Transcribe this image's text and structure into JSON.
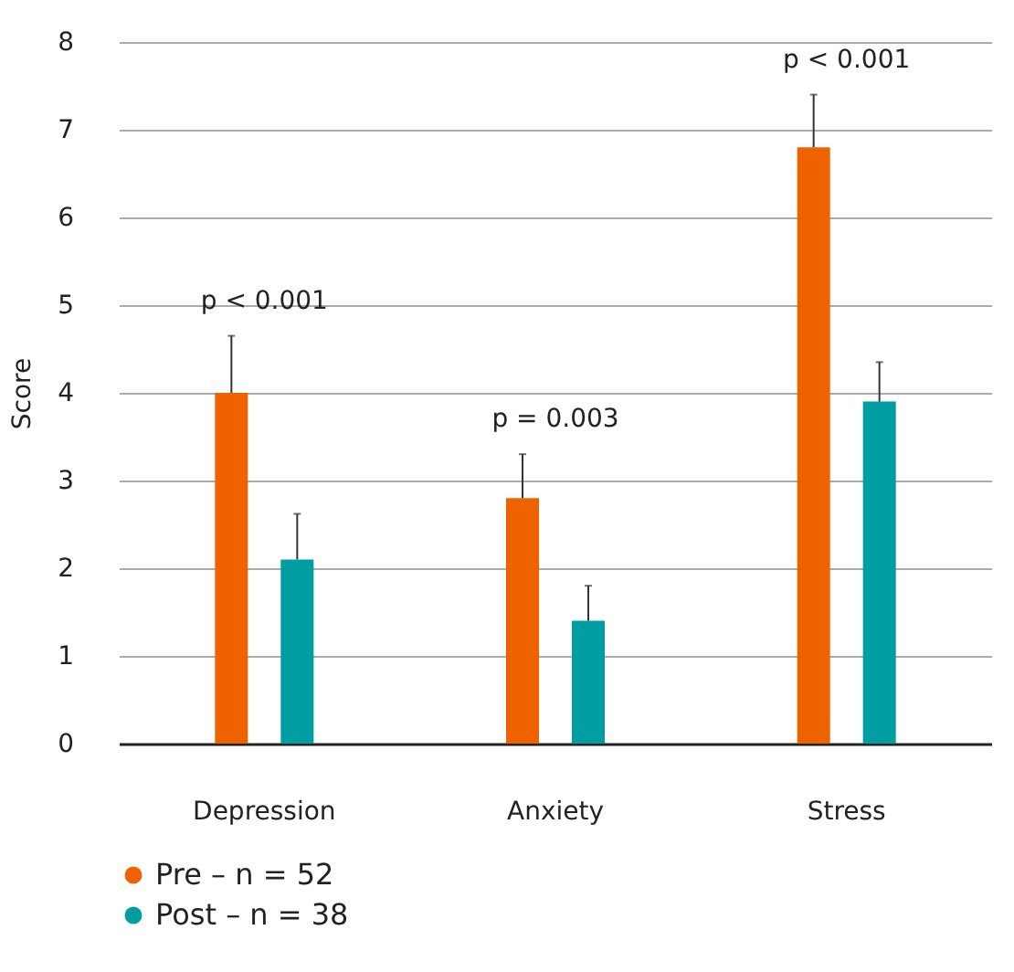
{
  "chart_data": {
    "type": "bar",
    "ylabel": "Score",
    "categories": [
      "Depression",
      "Anxiety",
      "Stress"
    ],
    "series": [
      {
        "name": "Pre – n = 52",
        "color": "#ee6300",
        "values": [
          4.0,
          2.8,
          6.8
        ],
        "errors": [
          [
            4.0,
            4.65
          ],
          [
            2.8,
            3.3
          ],
          [
            6.8,
            7.4
          ]
        ]
      },
      {
        "name": "Post – n = 38",
        "color": "#009ea3",
        "values": [
          2.1,
          1.4,
          3.9
        ],
        "errors": [
          [
            2.1,
            2.62
          ],
          [
            1.4,
            1.8
          ],
          [
            3.9,
            4.35
          ]
        ]
      }
    ],
    "ylim": [
      0,
      8
    ],
    "yticks": [
      0,
      1,
      2,
      3,
      4,
      5,
      6,
      7,
      8
    ],
    "grid": "y",
    "legend": "bottom",
    "annotations": [
      "p < 0.001",
      "p = 0.003",
      "p < 0.001"
    ]
  }
}
